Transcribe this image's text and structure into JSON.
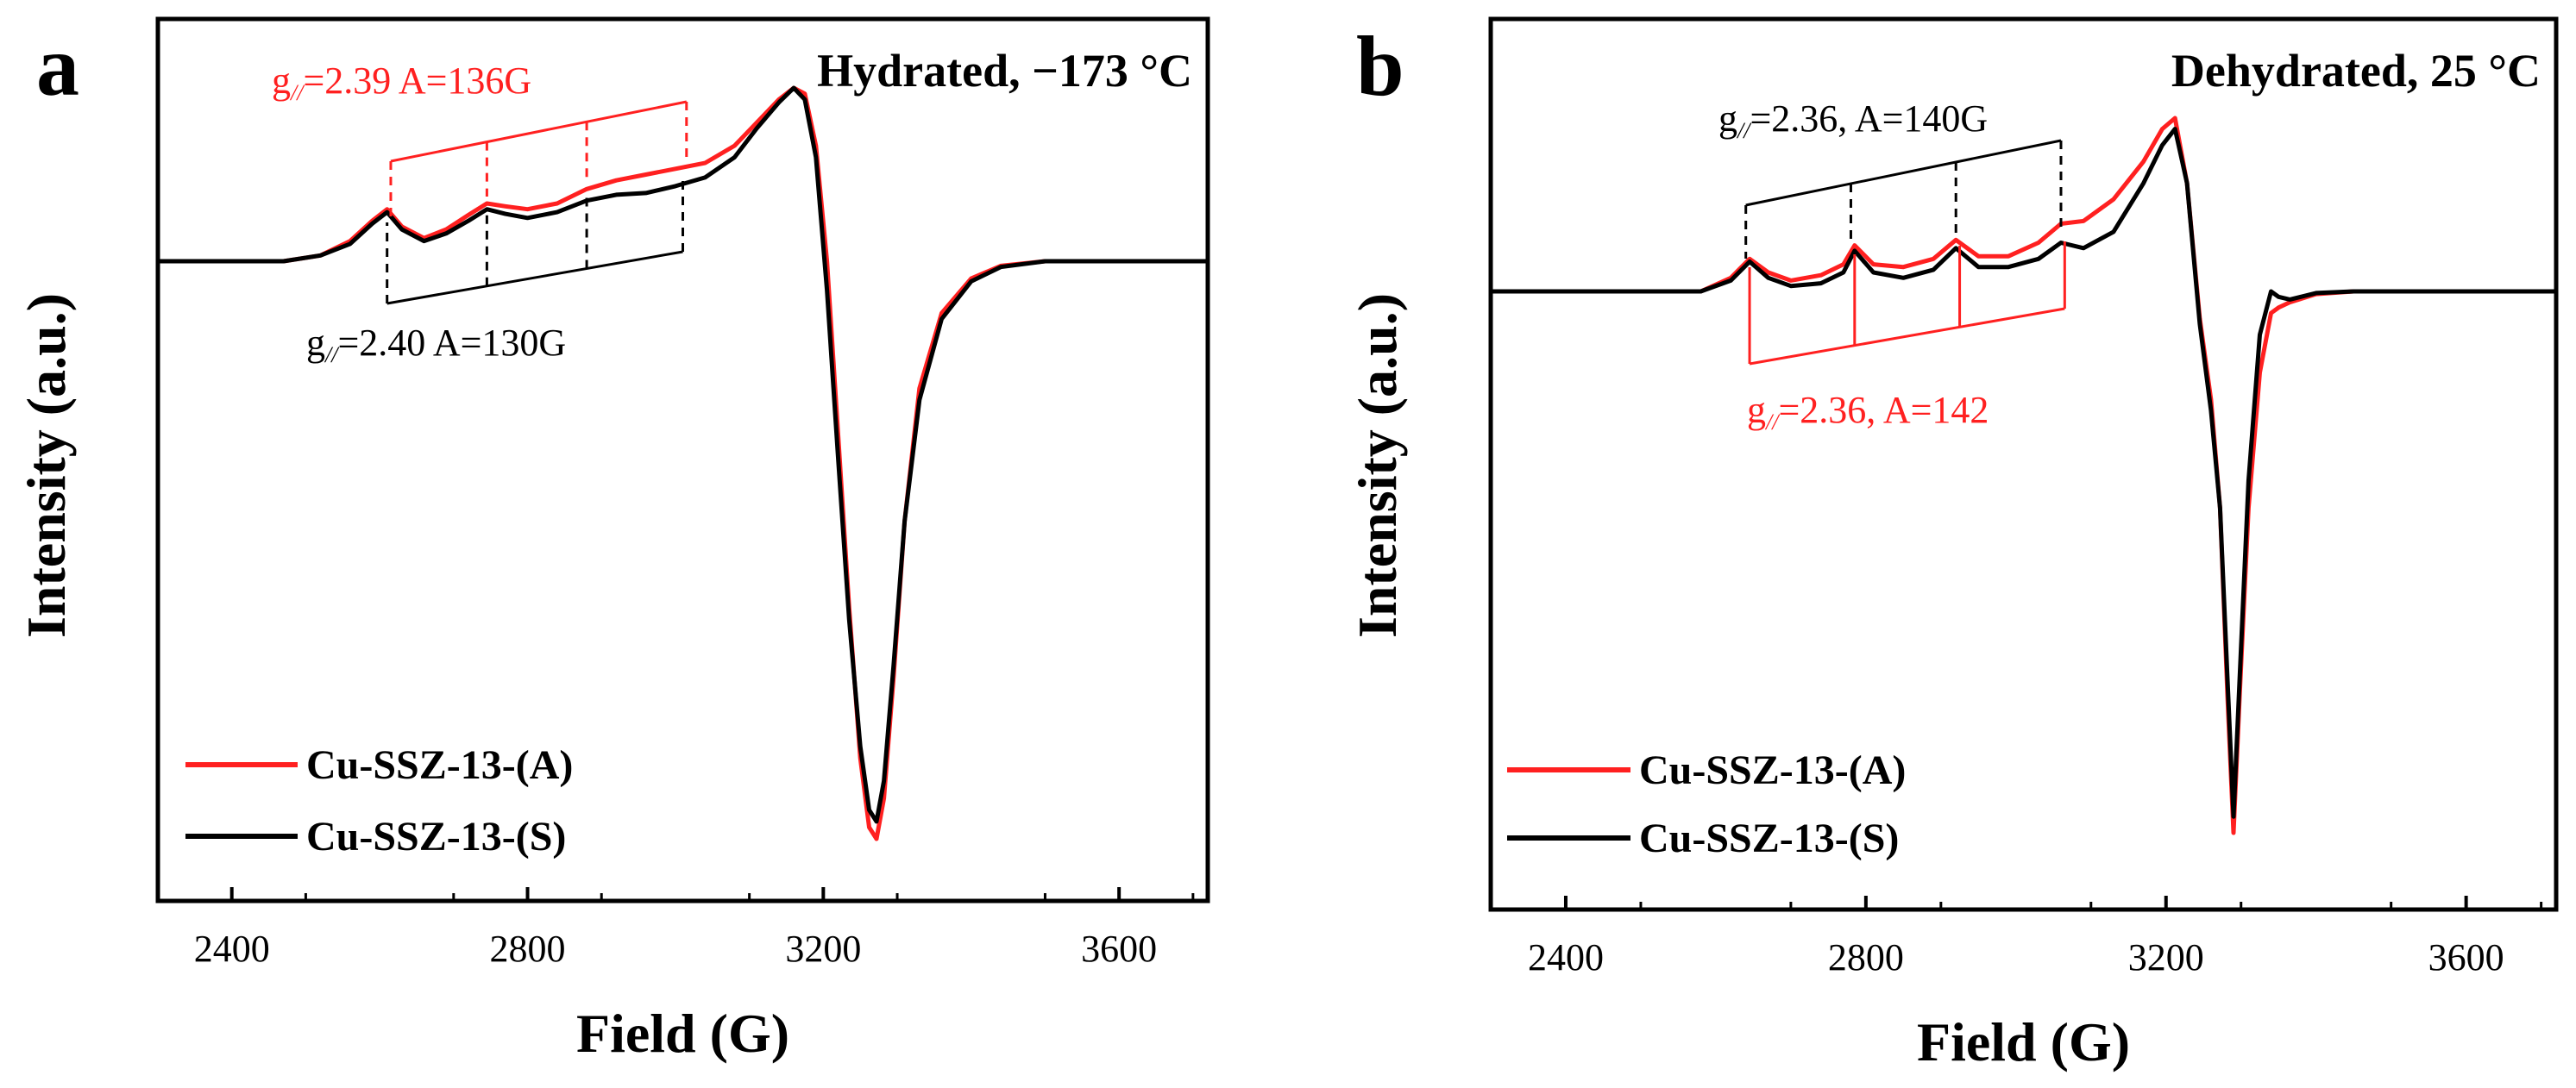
{
  "chart_data": [
    {
      "type": "line",
      "panel_label": "a",
      "title": "Hydrated, −173 °C",
      "xlabel": "Field (G)",
      "ylabel": "Intensity (a.u.)",
      "xlim": [
        2300,
        3720
      ],
      "ylim": [
        -1.0,
        0.32
      ],
      "xticks": [
        2400,
        2800,
        3200,
        3600
      ],
      "xtick_labels": [
        "2400",
        "2800",
        "3200",
        "3600"
      ],
      "legend_position": "bottom-left",
      "series": [
        {
          "name": "Cu-SSZ-13-(A)",
          "color": "#ff2020",
          "x": [
            2300,
            2470,
            2520,
            2560,
            2590,
            2610,
            2630,
            2660,
            2690,
            2720,
            2745,
            2770,
            2800,
            2840,
            2880,
            2920,
            2960,
            3000,
            3040,
            3080,
            3110,
            3140,
            3160,
            3175,
            3190,
            3205,
            3220,
            3235,
            3250,
            3262,
            3272,
            3282,
            3295,
            3310,
            3330,
            3360,
            3400,
            3440,
            3500,
            3600,
            3720
          ],
          "y": [
            0,
            0,
            0.01,
            0.035,
            0.07,
            0.09,
            0.06,
            0.04,
            0.055,
            0.08,
            0.1,
            0.095,
            0.09,
            0.1,
            0.125,
            0.14,
            0.15,
            0.16,
            0.17,
            0.2,
            0.24,
            0.28,
            0.3,
            0.29,
            0.2,
            0.0,
            -0.3,
            -0.6,
            -0.86,
            -0.98,
            -1.0,
            -0.93,
            -0.72,
            -0.45,
            -0.22,
            -0.09,
            -0.03,
            -0.008,
            0,
            0,
            0
          ]
        },
        {
          "name": "Cu-SSZ-13-(S)",
          "color": "#000000",
          "x": [
            2300,
            2470,
            2520,
            2560,
            2590,
            2610,
            2630,
            2660,
            2690,
            2720,
            2745,
            2770,
            2800,
            2840,
            2880,
            2920,
            2960,
            3000,
            3040,
            3080,
            3110,
            3140,
            3160,
            3175,
            3190,
            3205,
            3220,
            3235,
            3250,
            3262,
            3272,
            3282,
            3295,
            3310,
            3330,
            3360,
            3400,
            3440,
            3500,
            3600,
            3720
          ],
          "y": [
            0,
            0,
            0.01,
            0.03,
            0.065,
            0.085,
            0.055,
            0.035,
            0.048,
            0.07,
            0.09,
            0.082,
            0.075,
            0.085,
            0.105,
            0.115,
            0.118,
            0.13,
            0.145,
            0.18,
            0.23,
            0.275,
            0.3,
            0.28,
            0.18,
            -0.05,
            -0.34,
            -0.62,
            -0.84,
            -0.95,
            -0.97,
            -0.9,
            -0.7,
            -0.45,
            -0.24,
            -0.1,
            -0.035,
            -0.01,
            0,
            0,
            0
          ]
        }
      ],
      "annotations": {
        "red_label_prefix": "g",
        "red_label_sub": "//",
        "red_label_rest": "=2.39 A=136G",
        "black_label_prefix": "g",
        "black_label_sub": "//",
        "black_label_rest": "=2.40 A=130G",
        "red_ticks_field": [
          2615,
          2745,
          2880,
          3015
        ],
        "black_ticks_field": [
          2610,
          2745,
          2880,
          3010
        ]
      }
    },
    {
      "type": "line",
      "panel_label": "b",
      "title": "Dehydrated, 25 °C",
      "xlabel": "Field (G)",
      "ylabel": "Intensity (a.u.)",
      "xlim": [
        2300,
        3720
      ],
      "ylim": [
        -1.0,
        0.32
      ],
      "xticks": [
        2400,
        2800,
        3200,
        3600
      ],
      "xtick_labels": [
        "2400",
        "2800",
        "3200",
        "3600"
      ],
      "legend_position": "bottom-left",
      "series": [
        {
          "name": "Cu-SSZ-13-(A)",
          "color": "#ff2020",
          "x": [
            2300,
            2580,
            2620,
            2645,
            2670,
            2700,
            2740,
            2770,
            2785,
            2810,
            2850,
            2890,
            2920,
            2950,
            2990,
            3030,
            3060,
            3090,
            3130,
            3170,
            3195,
            3212,
            3228,
            3245,
            3260,
            3272,
            3282,
            3290,
            3298,
            3310,
            3325,
            3340,
            3350,
            3365,
            3400,
            3450,
            3720
          ],
          "y": [
            0,
            0,
            0.025,
            0.06,
            0.035,
            0.02,
            0.03,
            0.05,
            0.085,
            0.05,
            0.045,
            0.06,
            0.095,
            0.065,
            0.065,
            0.09,
            0.125,
            0.13,
            0.17,
            0.24,
            0.3,
            0.32,
            0.2,
            -0.05,
            -0.2,
            -0.4,
            -0.75,
            -1.0,
            -0.75,
            -0.4,
            -0.15,
            -0.04,
            -0.03,
            -0.02,
            -0.005,
            0,
            0
          ]
        },
        {
          "name": "Cu-SSZ-13-(S)",
          "color": "#000000",
          "x": [
            2300,
            2580,
            2620,
            2645,
            2670,
            2700,
            2740,
            2770,
            2785,
            2810,
            2850,
            2890,
            2920,
            2950,
            2990,
            3030,
            3060,
            3090,
            3130,
            3170,
            3195,
            3212,
            3228,
            3245,
            3260,
            3272,
            3282,
            3290,
            3298,
            3310,
            3325,
            3340,
            3350,
            3365,
            3400,
            3450,
            3720
          ],
          "y": [
            0,
            0,
            0.02,
            0.055,
            0.025,
            0.01,
            0.015,
            0.035,
            0.075,
            0.035,
            0.025,
            0.04,
            0.08,
            0.045,
            0.045,
            0.06,
            0.09,
            0.08,
            0.11,
            0.2,
            0.27,
            0.3,
            0.2,
            -0.06,
            -0.22,
            -0.4,
            -0.72,
            -0.97,
            -0.72,
            -0.35,
            -0.08,
            0.0,
            -0.01,
            -0.015,
            -0.003,
            0,
            0
          ]
        }
      ],
      "annotations": {
        "black_label_prefix": "g",
        "black_label_sub": "//",
        "black_label_rest": "=2.36, A=140G",
        "red_label_prefix": "g",
        "red_label_sub": "//",
        "red_label_rest": "=2.36, A=142",
        "black_ticks_field": [
          2640,
          2780,
          2920,
          3060
        ],
        "red_ticks_field": [
          2645,
          2785,
          2925,
          3065
        ]
      }
    }
  ]
}
